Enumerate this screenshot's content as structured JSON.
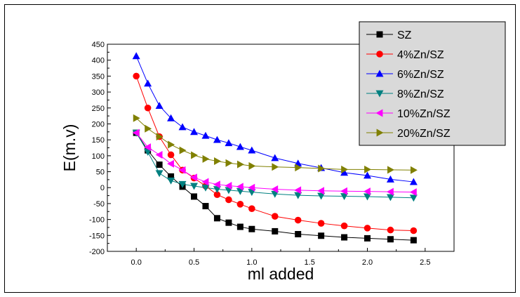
{
  "chart_data": {
    "type": "line",
    "title": "",
    "xlabel": "ml added",
    "ylabel": "E(m.v)",
    "xlim": [
      -0.25,
      2.75
    ],
    "ylim": [
      -200,
      450
    ],
    "xticks": [
      0.0,
      0.5,
      1.0,
      1.5,
      2.0,
      2.5
    ],
    "xtick_labels": [
      "0.0",
      "0.5",
      "1.0",
      "1.5",
      "2.0",
      "2.5"
    ],
    "yticks": [
      -200,
      -150,
      -100,
      -50,
      0,
      50,
      100,
      150,
      200,
      250,
      300,
      350,
      400,
      450
    ],
    "ytick_labels": [
      "-200",
      "-150",
      "-100",
      "-50",
      "0",
      "50",
      "100",
      "150",
      "200",
      "250",
      "300",
      "350",
      "400",
      "450"
    ],
    "grid": false,
    "legend_position": "top-right",
    "legend_background": "#d9d9d9",
    "series": [
      {
        "name": "SZ",
        "color": "#000000",
        "marker": "square",
        "x": [
          0,
          0.1,
          0.2,
          0.3,
          0.4,
          0.5,
          0.6,
          0.7,
          0.8,
          0.9,
          1.0,
          1.2,
          1.4,
          1.6,
          1.8,
          2.0,
          2.2,
          2.4
        ],
        "y": [
          172,
          117,
          72,
          35,
          3,
          -28,
          -58,
          -96,
          -110,
          -123,
          -130,
          -137,
          -146,
          -151,
          -156,
          -159,
          -162,
          -165
        ]
      },
      {
        "name": "4%Zn/SZ",
        "color": "#ff0000",
        "marker": "circle",
        "x": [
          0,
          0.1,
          0.2,
          0.3,
          0.4,
          0.5,
          0.6,
          0.7,
          0.8,
          0.9,
          1.0,
          1.2,
          1.4,
          1.6,
          1.8,
          2.0,
          2.2,
          2.4
        ],
        "y": [
          350,
          250,
          160,
          103,
          55,
          30,
          5,
          -22,
          -38,
          -52,
          -66,
          -90,
          -102,
          -112,
          -120,
          -127,
          -133,
          -135
        ]
      },
      {
        "name": "6%Zn/SZ",
        "color": "#0000ff",
        "marker": "triangle-up",
        "x": [
          0,
          0.1,
          0.2,
          0.3,
          0.4,
          0.5,
          0.6,
          0.7,
          0.8,
          0.9,
          1.0,
          1.2,
          1.4,
          1.6,
          1.8,
          2.0,
          2.2,
          2.4
        ],
        "y": [
          413,
          327,
          257,
          218,
          190,
          175,
          163,
          150,
          140,
          128,
          117,
          93,
          76,
          62,
          47,
          38,
          26,
          18
        ]
      },
      {
        "name": "8%Zn/SZ",
        "color": "#008080",
        "marker": "triangle-down",
        "x": [
          0,
          0.1,
          0.2,
          0.3,
          0.4,
          0.5,
          0.6,
          0.7,
          0.8,
          0.9,
          1.0,
          1.2,
          1.4,
          1.6,
          1.8,
          2.0,
          2.2,
          2.4
        ],
        "y": [
          172,
          112,
          45,
          22,
          11,
          5,
          0,
          -5,
          -8,
          -11,
          -14,
          -20,
          -24,
          -26,
          -27,
          -28,
          -30,
          -32
        ]
      },
      {
        "name": "10%Zn/SZ",
        "color": "#ff00ff",
        "marker": "triangle-left",
        "x": [
          0,
          0.1,
          0.2,
          0.3,
          0.4,
          0.5,
          0.6,
          0.7,
          0.8,
          0.9,
          1.0,
          1.2,
          1.4,
          1.6,
          1.8,
          2.0,
          2.2,
          2.4
        ],
        "y": [
          172,
          127,
          103,
          75,
          55,
          32,
          18,
          10,
          6,
          3,
          0,
          -5,
          -8,
          -10,
          -11,
          -12,
          -13,
          -14
        ]
      },
      {
        "name": "20%Zn/SZ",
        "color": "#808000",
        "marker": "triangle-right",
        "x": [
          0,
          0.1,
          0.2,
          0.3,
          0.4,
          0.5,
          0.6,
          0.7,
          0.8,
          0.9,
          1.0,
          1.2,
          1.4,
          1.6,
          1.8,
          2.0,
          2.2,
          2.4
        ],
        "y": [
          218,
          185,
          160,
          135,
          117,
          102,
          90,
          83,
          77,
          73,
          68,
          65,
          63,
          60,
          57,
          57,
          56,
          55
        ]
      }
    ]
  }
}
